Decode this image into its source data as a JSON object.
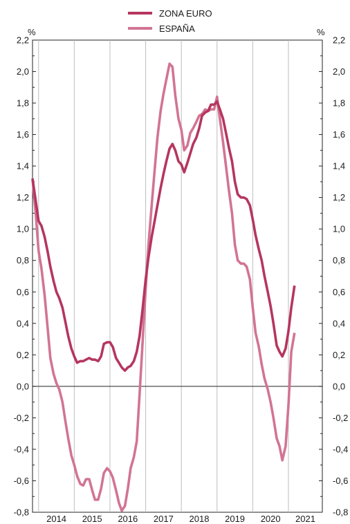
{
  "chart_data": {
    "type": "line",
    "y_unit_left": "%",
    "y_unit_right": "%",
    "ylim": [
      -0.8,
      2.2
    ],
    "y_ticks": [
      "2,2",
      "2,0",
      "1,8",
      "1,6",
      "1,4",
      "1,2",
      "1,0",
      "0,8",
      "0,6",
      "0,4",
      "0,2",
      "0,0",
      "-0,2",
      "-0,4",
      "-0,6",
      "-0,8"
    ],
    "y_tick_values": [
      2.2,
      2.0,
      1.8,
      1.6,
      1.4,
      1.2,
      1.0,
      0.8,
      0.6,
      0.4,
      0.2,
      0.0,
      -0.2,
      -0.4,
      -0.6,
      -0.8
    ],
    "x_ticks": [
      "2014",
      "2015",
      "2016",
      "2017",
      "2018",
      "2019",
      "2020",
      "2021"
    ],
    "x_range": [
      2013.83,
      2021.95
    ],
    "grid": "vertical year dividers",
    "zero_line": true,
    "legend_position": "top-center",
    "series": [
      {
        "name": "ZONA EURO",
        "color": "#b5365e",
        "points": [
          [
            2013.83,
            1.32
          ],
          [
            2013.92,
            1.18
          ],
          [
            2014.0,
            1.05
          ],
          [
            2014.08,
            1.02
          ],
          [
            2014.17,
            0.95
          ],
          [
            2014.25,
            0.86
          ],
          [
            2014.33,
            0.76
          ],
          [
            2014.42,
            0.67
          ],
          [
            2014.5,
            0.6
          ],
          [
            2014.58,
            0.56
          ],
          [
            2014.67,
            0.5
          ],
          [
            2014.75,
            0.41
          ],
          [
            2014.83,
            0.32
          ],
          [
            2014.92,
            0.24
          ],
          [
            2015.0,
            0.19
          ],
          [
            2015.08,
            0.15
          ],
          [
            2015.17,
            0.16
          ],
          [
            2015.25,
            0.16
          ],
          [
            2015.33,
            0.17
          ],
          [
            2015.42,
            0.18
          ],
          [
            2015.5,
            0.17
          ],
          [
            2015.58,
            0.17
          ],
          [
            2015.67,
            0.16
          ],
          [
            2015.75,
            0.19
          ],
          [
            2015.83,
            0.27
          ],
          [
            2015.92,
            0.28
          ],
          [
            2016.0,
            0.28
          ],
          [
            2016.08,
            0.25
          ],
          [
            2016.17,
            0.18
          ],
          [
            2016.25,
            0.15
          ],
          [
            2016.33,
            0.12
          ],
          [
            2016.42,
            0.1
          ],
          [
            2016.5,
            0.12
          ],
          [
            2016.58,
            0.13
          ],
          [
            2016.67,
            0.16
          ],
          [
            2016.75,
            0.22
          ],
          [
            2016.83,
            0.32
          ],
          [
            2016.92,
            0.5
          ],
          [
            2017.0,
            0.68
          ],
          [
            2017.08,
            0.82
          ],
          [
            2017.17,
            0.95
          ],
          [
            2017.25,
            1.05
          ],
          [
            2017.33,
            1.15
          ],
          [
            2017.42,
            1.26
          ],
          [
            2017.5,
            1.35
          ],
          [
            2017.58,
            1.43
          ],
          [
            2017.67,
            1.51
          ],
          [
            2017.75,
            1.54
          ],
          [
            2017.83,
            1.5
          ],
          [
            2017.92,
            1.43
          ],
          [
            2018.0,
            1.41
          ],
          [
            2018.08,
            1.36
          ],
          [
            2018.17,
            1.42
          ],
          [
            2018.25,
            1.48
          ],
          [
            2018.33,
            1.54
          ],
          [
            2018.42,
            1.58
          ],
          [
            2018.5,
            1.64
          ],
          [
            2018.58,
            1.72
          ],
          [
            2018.67,
            1.74
          ],
          [
            2018.75,
            1.75
          ],
          [
            2018.83,
            1.79
          ],
          [
            2018.92,
            1.79
          ],
          [
            2019.0,
            1.81
          ],
          [
            2019.08,
            1.76
          ],
          [
            2019.17,
            1.7
          ],
          [
            2019.25,
            1.61
          ],
          [
            2019.33,
            1.52
          ],
          [
            2019.42,
            1.43
          ],
          [
            2019.5,
            1.3
          ],
          [
            2019.58,
            1.22
          ],
          [
            2019.67,
            1.2
          ],
          [
            2019.75,
            1.2
          ],
          [
            2019.83,
            1.19
          ],
          [
            2019.92,
            1.15
          ],
          [
            2020.0,
            1.06
          ],
          [
            2020.08,
            0.96
          ],
          [
            2020.17,
            0.87
          ],
          [
            2020.25,
            0.8
          ],
          [
            2020.33,
            0.7
          ],
          [
            2020.42,
            0.6
          ],
          [
            2020.5,
            0.51
          ],
          [
            2020.58,
            0.4
          ],
          [
            2020.67,
            0.26
          ],
          [
            2020.75,
            0.22
          ],
          [
            2020.83,
            0.19
          ],
          [
            2020.92,
            0.24
          ],
          [
            2021.0,
            0.35
          ],
          [
            2021.08,
            0.5
          ],
          [
            2021.17,
            0.64
          ]
        ]
      },
      {
        "name": "ESPAÑA",
        "color": "#d27494",
        "points": [
          [
            2013.83,
            1.32
          ],
          [
            2013.92,
            1.1
          ],
          [
            2014.0,
            0.86
          ],
          [
            2014.08,
            0.75
          ],
          [
            2014.17,
            0.58
          ],
          [
            2014.25,
            0.38
          ],
          [
            2014.33,
            0.18
          ],
          [
            2014.42,
            0.08
          ],
          [
            2014.5,
            0.02
          ],
          [
            2014.58,
            -0.02
          ],
          [
            2014.67,
            -0.1
          ],
          [
            2014.75,
            -0.22
          ],
          [
            2014.83,
            -0.33
          ],
          [
            2014.92,
            -0.44
          ],
          [
            2015.0,
            -0.5
          ],
          [
            2015.08,
            -0.57
          ],
          [
            2015.17,
            -0.62
          ],
          [
            2015.25,
            -0.63
          ],
          [
            2015.33,
            -0.59
          ],
          [
            2015.42,
            -0.59
          ],
          [
            2015.5,
            -0.66
          ],
          [
            2015.58,
            -0.72
          ],
          [
            2015.67,
            -0.72
          ],
          [
            2015.75,
            -0.65
          ],
          [
            2015.83,
            -0.55
          ],
          [
            2015.92,
            -0.52
          ],
          [
            2016.0,
            -0.54
          ],
          [
            2016.08,
            -0.58
          ],
          [
            2016.17,
            -0.66
          ],
          [
            2016.25,
            -0.74
          ],
          [
            2016.33,
            -0.79
          ],
          [
            2016.42,
            -0.76
          ],
          [
            2016.5,
            -0.65
          ],
          [
            2016.58,
            -0.52
          ],
          [
            2016.67,
            -0.45
          ],
          [
            2016.75,
            -0.35
          ],
          [
            2016.83,
            -0.05
          ],
          [
            2016.92,
            0.3
          ],
          [
            2017.0,
            0.62
          ],
          [
            2017.08,
            0.9
          ],
          [
            2017.17,
            1.15
          ],
          [
            2017.25,
            1.37
          ],
          [
            2017.33,
            1.58
          ],
          [
            2017.42,
            1.75
          ],
          [
            2017.5,
            1.86
          ],
          [
            2017.58,
            1.95
          ],
          [
            2017.67,
            2.05
          ],
          [
            2017.75,
            2.03
          ],
          [
            2017.83,
            1.85
          ],
          [
            2017.92,
            1.7
          ],
          [
            2018.0,
            1.63
          ],
          [
            2018.08,
            1.5
          ],
          [
            2018.17,
            1.53
          ],
          [
            2018.25,
            1.61
          ],
          [
            2018.33,
            1.64
          ],
          [
            2018.42,
            1.68
          ],
          [
            2018.5,
            1.72
          ],
          [
            2018.58,
            1.73
          ],
          [
            2018.67,
            1.76
          ],
          [
            2018.75,
            1.75
          ],
          [
            2018.83,
            1.76
          ],
          [
            2018.92,
            1.76
          ],
          [
            2019.0,
            1.84
          ],
          [
            2019.08,
            1.7
          ],
          [
            2019.17,
            1.55
          ],
          [
            2019.25,
            1.4
          ],
          [
            2019.33,
            1.25
          ],
          [
            2019.42,
            1.1
          ],
          [
            2019.5,
            0.9
          ],
          [
            2019.58,
            0.8
          ],
          [
            2019.67,
            0.78
          ],
          [
            2019.75,
            0.78
          ],
          [
            2019.83,
            0.76
          ],
          [
            2019.92,
            0.68
          ],
          [
            2020.0,
            0.5
          ],
          [
            2020.08,
            0.34
          ],
          [
            2020.17,
            0.25
          ],
          [
            2020.25,
            0.14
          ],
          [
            2020.33,
            0.05
          ],
          [
            2020.42,
            -0.02
          ],
          [
            2020.5,
            -0.1
          ],
          [
            2020.58,
            -0.2
          ],
          [
            2020.67,
            -0.33
          ],
          [
            2020.75,
            -0.38
          ],
          [
            2020.83,
            -0.47
          ],
          [
            2020.92,
            -0.38
          ],
          [
            2021.0,
            -0.12
          ],
          [
            2021.08,
            0.22
          ],
          [
            2021.17,
            0.34
          ]
        ]
      }
    ]
  }
}
